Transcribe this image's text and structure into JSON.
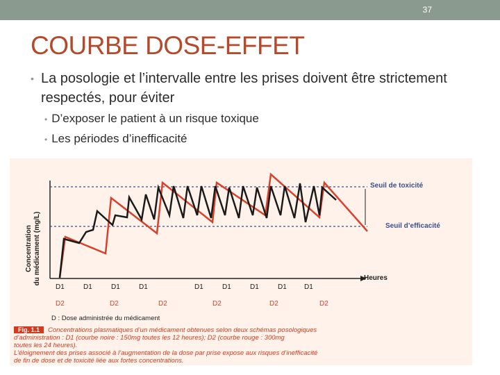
{
  "header": {
    "page_number": "37"
  },
  "slide": {
    "title": "COURBE DOSE-EFFET",
    "bullet_main": "La posologie et l’intervalle entre les prises doivent être strictement respectés, pour éviter",
    "sub_bullets": [
      "D’exposer le patient à un risque toxique",
      "Les périodes d’inefficacité"
    ]
  },
  "figure": {
    "y_label_line1": "Concentration",
    "y_label_line2": "du médicament (mg/L)",
    "x_label": "Heures",
    "threshold_toxic": "Seuil de toxicité",
    "threshold_efficacy": "Seuil d’efficacité",
    "d1_labels": [
      "D1",
      "D1",
      "D1",
      "D1",
      "D1",
      "D1",
      "D1",
      "D1",
      "D1"
    ],
    "d2_labels": [
      "D2",
      "D2",
      "D2",
      "D2",
      "D2",
      "D2"
    ],
    "legend_d": "D : Dose administrée du médicament",
    "colors": {
      "black_curve": "#1a1a1a",
      "red_curve": "#d9402a",
      "threshold_line": "#3a4f8a",
      "background": "#fff2ea"
    }
  },
  "caption": {
    "fig_label": "Fig. 1.1",
    "line1": "Concentrations plasmatiques d’un médicament obtenues selon deux schémas posologiques",
    "line2": "d’administration : D1 (courbe noire : 150mg toutes les 12 heures); D2 (courbe rouge : 300mg",
    "line3": "toutes les 24 heures).",
    "line4": "L’éloignement des prises associé à l’augmentation de la dose par prise expose aux risques d’inefficacité",
    "line5": "de fin de dose et de toxicité liée aux fortes concentrations."
  }
}
